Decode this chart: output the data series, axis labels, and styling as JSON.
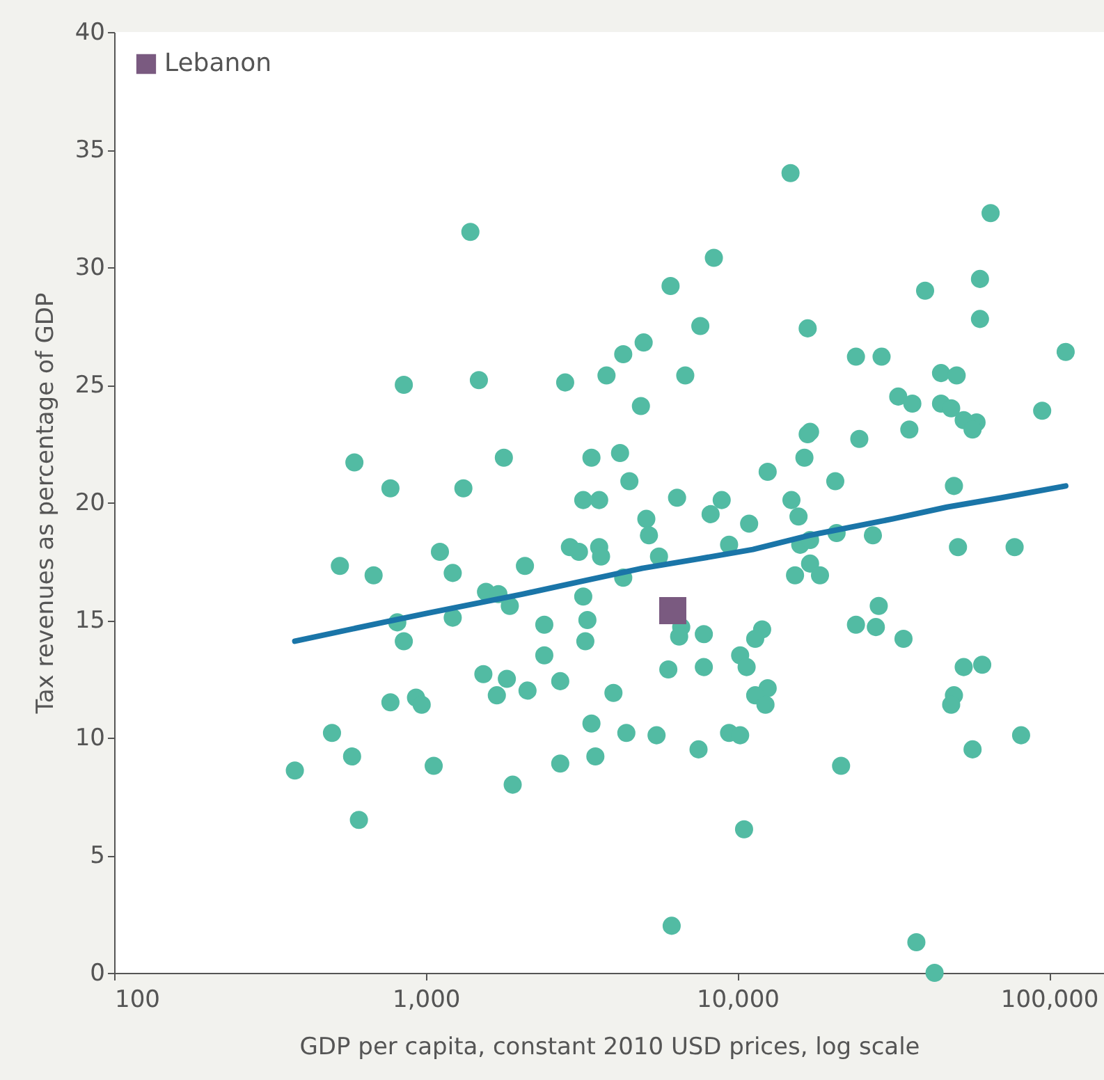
{
  "chart_data": {
    "type": "scatter",
    "xlabel": "GDP per capita, constant 2010 USD prices, log scale",
    "ylabel": "Tax revenues as percentage of GDP",
    "log": "x",
    "xlim": [
      100,
      150000
    ],
    "xticks": [
      100,
      {
        "value": 1000,
        "label": "1,000"
      },
      {
        "value": 10000,
        "label": "10,000"
      },
      {
        "value": 100000,
        "label": "100,000"
      }
    ],
    "ylim": [
      0,
      40
    ],
    "yticks": [
      0,
      5,
      10,
      15,
      20,
      25,
      30,
      35,
      40
    ],
    "grid": false,
    "legend": "top left",
    "series": [
      {
        "marker": "circle",
        "color": "#52bba3",
        "x": [
          1390,
          850,
          1480,
          590,
          770,
          1320,
          1780,
          530,
          680,
          1110,
          1220,
          2080,
          1560,
          1710,
          1860,
          810,
          1220,
          850,
          1530,
          1820,
          1690,
          2120,
          770,
          930,
          970,
          500,
          580,
          380,
          1060,
          1900,
          610,
          8400,
          6100,
          7600,
          5000,
          4300,
          3800,
          2800,
          6800,
          4900,
          3400,
          4200,
          4500,
          3200,
          3600,
          6400,
          8900,
          8200,
          12500,
          5100,
          5200,
          10900,
          9400,
          2900,
          3100,
          3600,
          3650,
          5600,
          4300,
          3200,
          2400,
          3300,
          3250,
          2400,
          6600,
          6500,
          7800,
          12000,
          11400,
          10200,
          10700,
          6000,
          7800,
          2700,
          4000,
          12500,
          11400,
          12300,
          3400,
          4400,
          5500,
          9400,
          10200,
          7500,
          2700,
          3500,
          10500,
          6150,
          14800,
          64900,
          40000,
          60000,
          60000,
          16800,
          24000,
          29000,
          113000,
          45000,
          50500,
          32800,
          36400,
          45000,
          48500,
          53200,
          58500,
          56800,
          35600,
          95000,
          16800,
          17100,
          24600,
          16400,
          20600,
          49500,
          14900,
          15700,
          20800,
          27200,
          51000,
          77500,
          15900,
          17100,
          17100,
          15300,
          18400,
          28400,
          24000,
          27800,
          34100,
          53200,
          61000,
          49500,
          48500,
          56800,
          81300,
          21500,
          37500,
          42900
        ],
        "values": [
          31.5,
          25.0,
          25.2,
          21.7,
          20.6,
          20.6,
          21.9,
          17.3,
          16.9,
          17.9,
          17.0,
          17.3,
          16.2,
          16.1,
          15.6,
          14.9,
          15.1,
          14.1,
          12.7,
          12.5,
          11.8,
          12.0,
          11.5,
          11.7,
          11.4,
          10.2,
          9.2,
          8.6,
          8.8,
          8.0,
          6.5,
          30.4,
          29.2,
          27.5,
          26.8,
          26.3,
          25.4,
          25.1,
          25.4,
          24.1,
          21.9,
          22.1,
          20.9,
          20.1,
          20.1,
          20.2,
          20.1,
          19.5,
          21.3,
          19.3,
          18.6,
          19.1,
          18.2,
          18.1,
          17.9,
          18.1,
          17.7,
          17.7,
          16.8,
          16.0,
          14.8,
          15.0,
          14.1,
          13.5,
          14.7,
          14.3,
          14.4,
          14.6,
          14.2,
          13.5,
          13.0,
          12.9,
          13.0,
          12.4,
          11.9,
          12.1,
          11.8,
          11.4,
          10.6,
          10.2,
          10.1,
          10.2,
          10.1,
          9.5,
          8.9,
          9.2,
          6.1,
          2.0,
          34.0,
          32.3,
          29.0,
          29.5,
          27.8,
          27.4,
          26.2,
          26.2,
          26.4,
          25.5,
          25.4,
          24.5,
          24.2,
          24.2,
          24.0,
          23.5,
          23.4,
          23.1,
          23.1,
          23.9,
          22.9,
          23.0,
          22.7,
          21.9,
          20.9,
          20.7,
          20.1,
          19.4,
          18.7,
          18.6,
          18.1,
          18.1,
          18.2,
          18.4,
          17.4,
          16.9,
          16.9,
          15.6,
          14.8,
          14.7,
          14.2,
          13.0,
          13.1,
          11.8,
          11.4,
          9.5,
          10.1,
          8.8,
          1.3,
          0.0
        ]
      },
      {
        "type": "line",
        "marker": "none",
        "line_style": "solid",
        "color": "#1a75a8",
        "x": [
          380,
          730,
          1020,
          2040,
          3050,
          4950,
          7500,
          11200,
          17000,
          31500,
          47000,
          70400,
          113000
        ],
        "values": [
          14.1,
          14.9,
          15.3,
          16.1,
          16.6,
          17.2,
          17.6,
          18.0,
          18.6,
          19.3,
          19.8,
          20.2,
          20.7
        ]
      },
      {
        "name": "Lebanon",
        "marker": "square",
        "color": "#7a5a80",
        "x": [
          6200
        ],
        "values": [
          15.4
        ]
      }
    ]
  }
}
